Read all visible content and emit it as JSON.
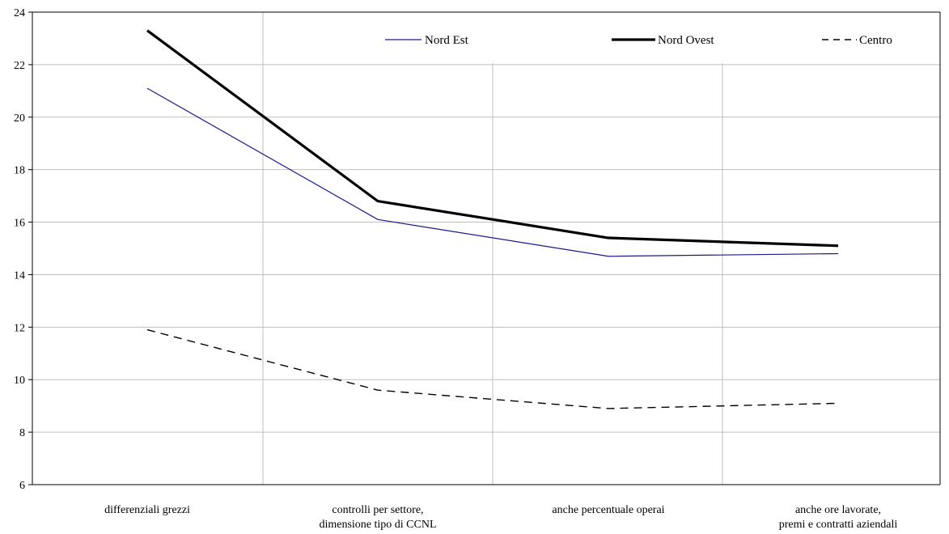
{
  "chart_data": {
    "type": "line",
    "title": "",
    "xlabel": "",
    "ylabel": "",
    "categories": [
      [
        "differenziali grezzi"
      ],
      [
        "controlli per settore,",
        "dimensione tipo di CCNL"
      ],
      [
        "anche percentuale operai"
      ],
      [
        "anche ore lavorate,",
        "premi e contratti aziendali"
      ]
    ],
    "ylim": [
      6,
      24
    ],
    "yticks": [
      6,
      8,
      10,
      12,
      14,
      16,
      18,
      20,
      22,
      24
    ],
    "grid": "on",
    "legend_position": "top",
    "series": [
      {
        "name": "Nord Est",
        "values": [
          21.1,
          16.1,
          14.7,
          14.8
        ],
        "color": "#1a1a8c",
        "style": "thin"
      },
      {
        "name": "Nord Ovest",
        "values": [
          23.3,
          16.8,
          15.4,
          15.1
        ],
        "color": "#000000",
        "style": "thick"
      },
      {
        "name": "Centro",
        "values": [
          11.9,
          9.6,
          8.9,
          9.1
        ],
        "color": "#000000",
        "style": "dashed"
      }
    ]
  }
}
